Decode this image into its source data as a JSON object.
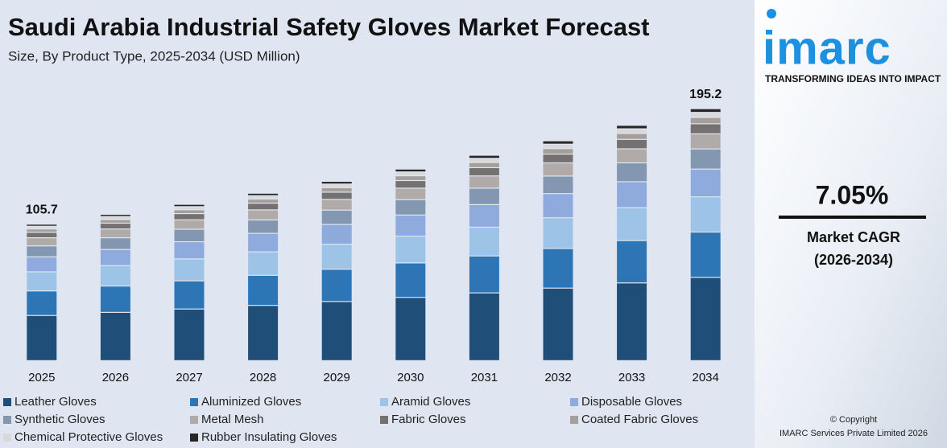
{
  "chart_data": {
    "type": "stacked_bar",
    "title": "Saudi Arabia Industrial Safety Gloves Market Forecast",
    "subtitle": "Size, By Product Type, 2025-2034 (USD Million)",
    "categories": [
      "2025",
      "2026",
      "2027",
      "2028",
      "2029",
      "2030",
      "2031",
      "2032",
      "2033",
      "2034"
    ],
    "ylim": [
      0,
      200
    ],
    "series": [
      {
        "name": "Leather Gloves",
        "color": "#1f4e79",
        "values": [
          35.0,
          37.4,
          40.0,
          42.8,
          45.8,
          49.0,
          52.5,
          56.2,
          60.2,
          64.5
        ]
      },
      {
        "name": "Aluminized Gloves",
        "color": "#2e75b6",
        "values": [
          19.0,
          20.4,
          21.8,
          23.3,
          25.0,
          26.7,
          28.6,
          30.7,
          32.8,
          35.1
        ]
      },
      {
        "name": "Aramid Gloves",
        "color": "#9dc3e6",
        "values": [
          14.8,
          15.8,
          17.0,
          18.2,
          19.4,
          20.8,
          22.3,
          23.8,
          25.5,
          27.3
        ]
      },
      {
        "name": "Disposable Gloves",
        "color": "#8faadc",
        "values": [
          11.6,
          12.5,
          13.3,
          14.3,
          15.3,
          16.3,
          17.5,
          18.7,
          20.1,
          21.5
        ]
      },
      {
        "name": "Synthetic Gloves",
        "color": "#8497b0",
        "values": [
          8.5,
          9.1,
          9.7,
          10.4,
          11.1,
          11.9,
          12.7,
          13.6,
          14.6,
          15.6
        ]
      },
      {
        "name": "Metal Mesh",
        "color": "#b0aba8",
        "values": [
          6.3,
          6.8,
          7.3,
          7.8,
          8.3,
          8.9,
          9.5,
          10.2,
          10.9,
          11.7
        ]
      },
      {
        "name": "Fabric Gloves",
        "color": "#767171",
        "values": [
          4.2,
          4.5,
          4.8,
          5.2,
          5.6,
          5.9,
          6.4,
          6.8,
          7.3,
          7.8
        ]
      },
      {
        "name": "Coated Fabric Gloves",
        "color": "#a59f9b",
        "values": [
          2.6,
          2.8,
          3.0,
          3.2,
          3.5,
          3.7,
          4.0,
          4.3,
          4.6,
          4.9
        ]
      },
      {
        "name": "Chemical Protective Gloves",
        "color": "#d9d9d9",
        "values": [
          2.1,
          2.3,
          2.4,
          2.6,
          2.8,
          3.0,
          3.2,
          3.4,
          3.6,
          3.9
        ]
      },
      {
        "name": "Rubber Insulating Gloves",
        "color": "#262626",
        "values": [
          1.6,
          1.7,
          1.8,
          1.9,
          2.1,
          2.2,
          2.4,
          2.6,
          2.7,
          2.9
        ]
      }
    ],
    "total_labels": [
      {
        "category": "2025",
        "value": 105.7
      },
      {
        "category": "2034",
        "value": 195.2
      }
    ]
  },
  "branding": {
    "logo": "imarc",
    "tagline": "TRANSFORMING IDEAS INTO IMPACT",
    "cagr": "7.05%",
    "cagr_label": "Market CAGR",
    "cagr_period": "(2026-2034)",
    "copyright": "© Copyright",
    "company": "IMARC Services Private Limited 2026"
  }
}
